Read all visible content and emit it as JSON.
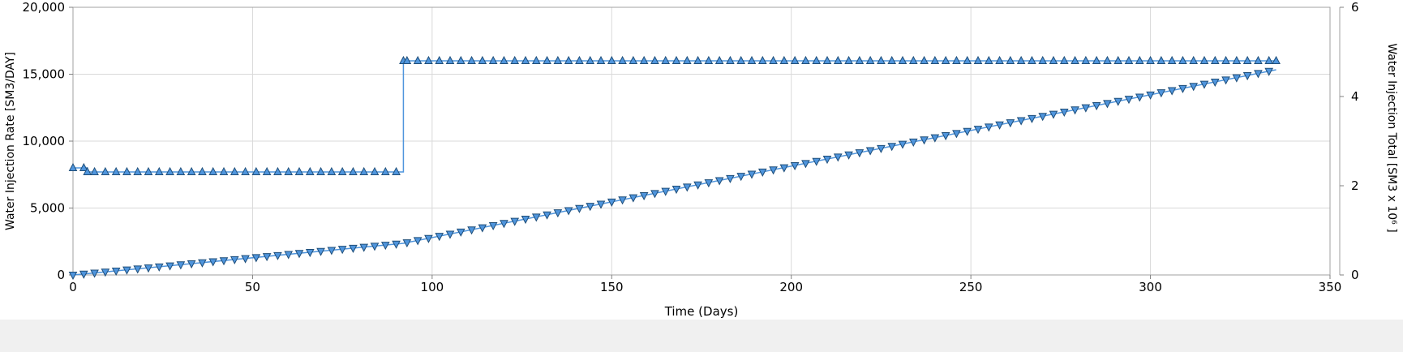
{
  "chart_data": {
    "type": "line",
    "xlabel": "Time (Days)",
    "ylabel_left": "Water Injection Rate [SM3/DAY]",
    "ylabel_right": "Water Injection Total [SM3 x 10⁶ ]",
    "xlim": [
      0,
      350
    ],
    "ylim_left": [
      0,
      20000
    ],
    "ylim_right": [
      0,
      6
    ],
    "x_ticks": [
      "0",
      "50",
      "100",
      "150",
      "200",
      "250",
      "300",
      "350"
    ],
    "y_left_ticks": [
      "0",
      "5,000",
      "10,000",
      "15,000",
      "20,000"
    ],
    "y_right_ticks": [
      "0",
      "2",
      "4",
      "6"
    ],
    "grid": true,
    "colors": {
      "line": "#4f95dd",
      "marker": "#1f4e79",
      "grid": "#d9d9d9"
    },
    "series": [
      {
        "axis": "left",
        "marker": "triangle-up",
        "step": true,
        "points": [
          [
            0,
            8000
          ],
          [
            4,
            7700
          ],
          [
            92,
            16000
          ],
          [
            335,
            16000
          ]
        ]
      },
      {
        "axis": "right",
        "marker": "triangle-down",
        "points": [
          [
            0,
            0
          ],
          [
            4,
            0.03
          ],
          [
            92,
            0.71
          ],
          [
            335,
            4.6
          ]
        ]
      }
    ]
  }
}
